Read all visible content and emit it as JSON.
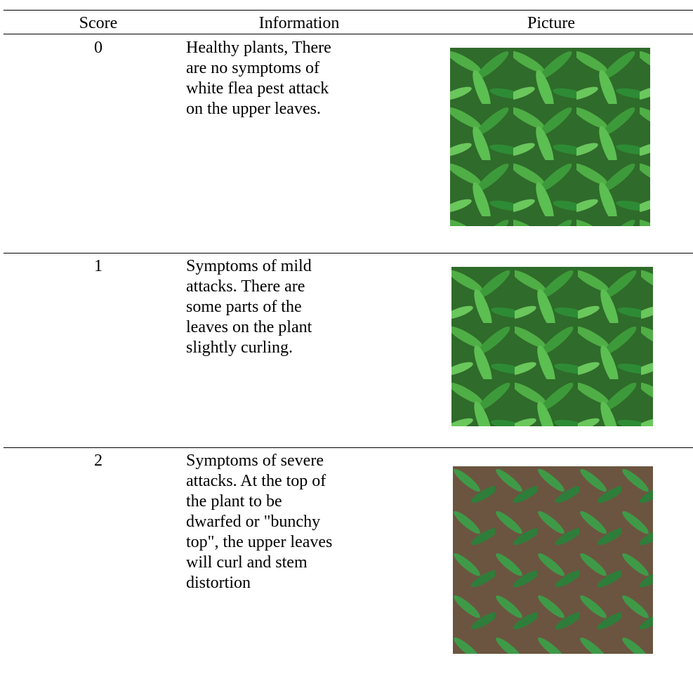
{
  "table": {
    "header": [
      "Score",
      "Information",
      "Picture"
    ],
    "rows": [
      {
        "score": "0",
        "info": [
          "Healthy plants, There",
          "are no symptoms of",
          "white flea pest attack",
          "on the upper leaves."
        ]
      },
      {
        "score": "1",
        "info": [
          "Symptoms of mild",
          "attacks. There are",
          "some parts of the",
          "leaves on the plant",
          "slightly curling."
        ]
      },
      {
        "score": "2",
        "info": [
          "Symptoms of severe",
          "attacks. At the top of",
          "the plant to be",
          "dwarfed or \"bunchy",
          "top\", the upper leaves",
          "will curl and stem",
          "distortion"
        ]
      }
    ]
  }
}
